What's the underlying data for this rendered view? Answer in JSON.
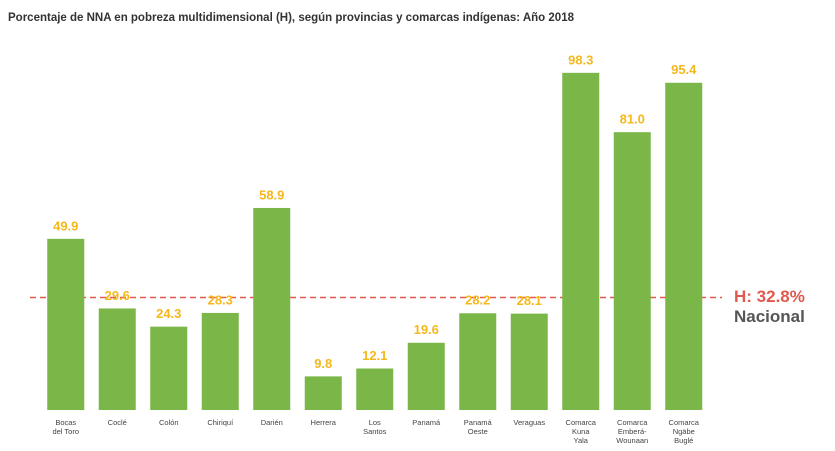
{
  "chart_data": {
    "type": "bar",
    "title": "Porcentaje de NNA en pobreza multidimensional (H), según provincias y comarcas indígenas: Año 2018",
    "categories": [
      [
        "Bocas",
        "del Toro"
      ],
      [
        "Coclé"
      ],
      [
        "Colón"
      ],
      [
        "Chiriquí"
      ],
      [
        "Darién"
      ],
      [
        "Herrera"
      ],
      [
        "Los",
        "Santos"
      ],
      [
        "Panamá"
      ],
      [
        "Panamá",
        "Oeste"
      ],
      [
        "Veraguas"
      ],
      [
        "Comarca",
        "Kuna",
        "Yala"
      ],
      [
        "Comarca",
        "Emberá-",
        "Wounaan"
      ],
      [
        "Comarca",
        "Ngäbe",
        "Buglé"
      ]
    ],
    "values": [
      49.9,
      29.6,
      24.3,
      28.3,
      58.9,
      9.8,
      12.1,
      19.6,
      28.2,
      28.1,
      98.3,
      81.0,
      95.4
    ],
    "value_labels": [
      "49.9",
      "29.6",
      "24.3",
      "28.3",
      "58.9",
      "9.8",
      "12.1",
      "19.6",
      "28.2",
      "28.1",
      "98.3",
      "81.0",
      "95.4"
    ],
    "color": "#7ab648",
    "ylim": [
      0,
      100
    ],
    "reference_line": {
      "value": 32.8,
      "label": "H: 32.8%",
      "note": "Nacional",
      "color": "#e05a4f"
    }
  }
}
